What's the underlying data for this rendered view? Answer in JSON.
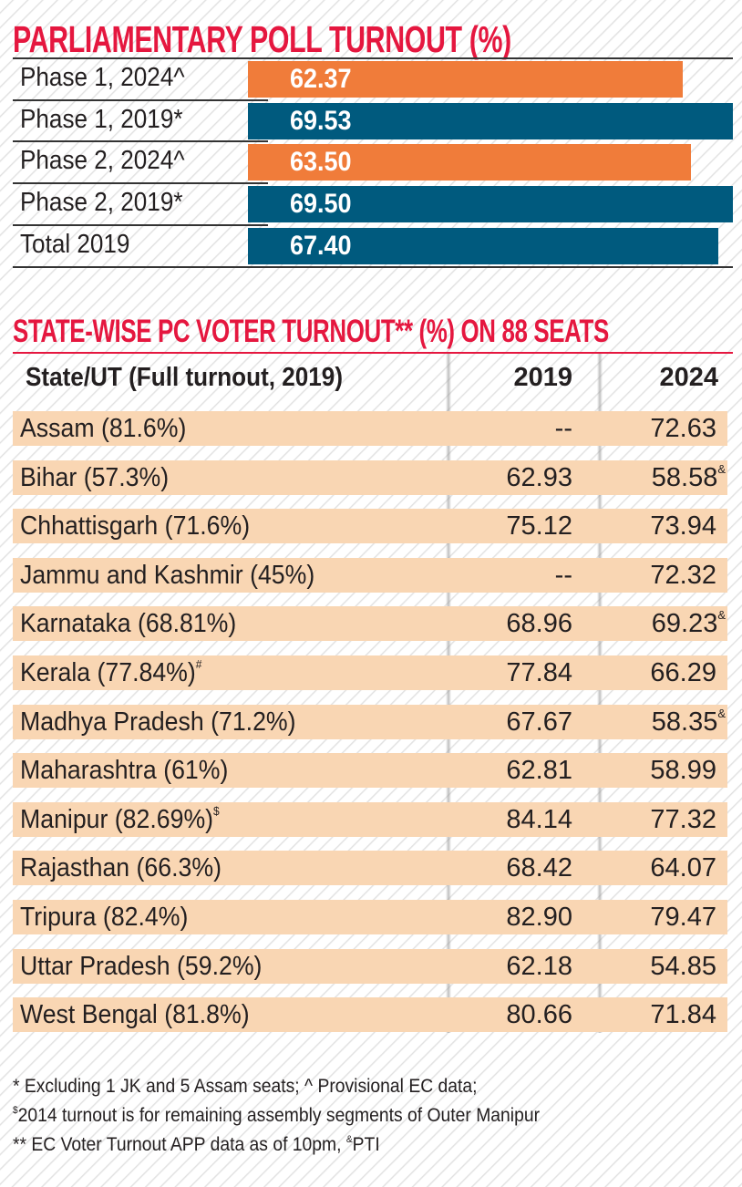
{
  "chart_data": {
    "type": "bar",
    "orientation": "horizontal",
    "title": "PARLIAMENTARY POLL TURNOUT (%)",
    "categories": [
      "Phase 1, 2024^",
      "Phase 1, 2019*",
      "Phase 2, 2024^",
      "Phase 2, 2019*",
      "Total 2019"
    ],
    "values": [
      62.37,
      69.53,
      63.5,
      69.5,
      67.4
    ],
    "value_labels": [
      "62.37",
      "69.53",
      "63.50",
      "69.50",
      "67.40"
    ],
    "bar_colors": [
      "#f07c3a",
      "#005a7e",
      "#f07c3a",
      "#005a7e",
      "#005a7e"
    ],
    "xlim": [
      0,
      69.53
    ],
    "grid": false
  },
  "table": {
    "title": "STATE-WISE PC VOTER TURNOUT** (%) ON 88 SEATS",
    "headers": [
      "State/UT (Full turnout, 2019)",
      "2019",
      "2024"
    ],
    "rows": [
      {
        "state": "Assam (81.6%)",
        "state_note": "",
        "v2019": "--",
        "v2024": "72.63",
        "v2024_note": ""
      },
      {
        "state": "Bihar (57.3%)",
        "state_note": "",
        "v2019": "62.93",
        "v2024": "58.58",
        "v2024_note": "&"
      },
      {
        "state": "Chhattisgarh (71.6%)",
        "state_note": "",
        "v2019": "75.12",
        "v2024": "73.94",
        "v2024_note": ""
      },
      {
        "state": "Jammu and Kashmir (45%)",
        "state_note": "",
        "v2019": "--",
        "v2024": "72.32",
        "v2024_note": ""
      },
      {
        "state": "Karnataka (68.81%)",
        "state_note": "",
        "v2019": "68.96",
        "v2024": "69.23",
        "v2024_note": "&"
      },
      {
        "state": "Kerala (77.84%)",
        "state_note": "#",
        "v2019": "77.84",
        "v2024": "66.29",
        "v2024_note": ""
      },
      {
        "state": "Madhya Pradesh (71.2%)",
        "state_note": "",
        "v2019": "67.67",
        "v2024": "58.35",
        "v2024_note": "&"
      },
      {
        "state": "Maharashtra (61%)",
        "state_note": "",
        "v2019": "62.81",
        "v2024": "58.99",
        "v2024_note": ""
      },
      {
        "state": "Manipur (82.69%)",
        "state_note": "$",
        "v2019": "84.14",
        "v2024": "77.32",
        "v2024_note": ""
      },
      {
        "state": "Rajasthan (66.3%)",
        "state_note": "",
        "v2019": "68.42",
        "v2024": "64.07",
        "v2024_note": ""
      },
      {
        "state": "Tripura (82.4%)",
        "state_note": "",
        "v2019": "82.90",
        "v2024": "79.47",
        "v2024_note": ""
      },
      {
        "state": "Uttar Pradesh (59.2%)",
        "state_note": "",
        "v2019": "62.18",
        "v2024": "54.85",
        "v2024_note": ""
      },
      {
        "state": "West Bengal (81.8%)",
        "state_note": "",
        "v2019": "80.66",
        "v2024": "71.84",
        "v2024_note": ""
      }
    ],
    "row_color": "#f9d6b3"
  },
  "footnotes": {
    "line1": "* Excluding 1 JK and 5 Assam seats; ^ Provisional EC data;",
    "line2_sup": "$",
    "line2": "2014 turnout is for remaining assembly segments of Outer Manipur",
    "line3_a": "** EC Voter Turnout APP data as of 10pm, ",
    "line3_sup": "&",
    "line3_b": "PTI"
  },
  "colors": {
    "title": "#e5173f",
    "phase_2024": "#f07c3a",
    "phase_2019": "#005a7e"
  }
}
